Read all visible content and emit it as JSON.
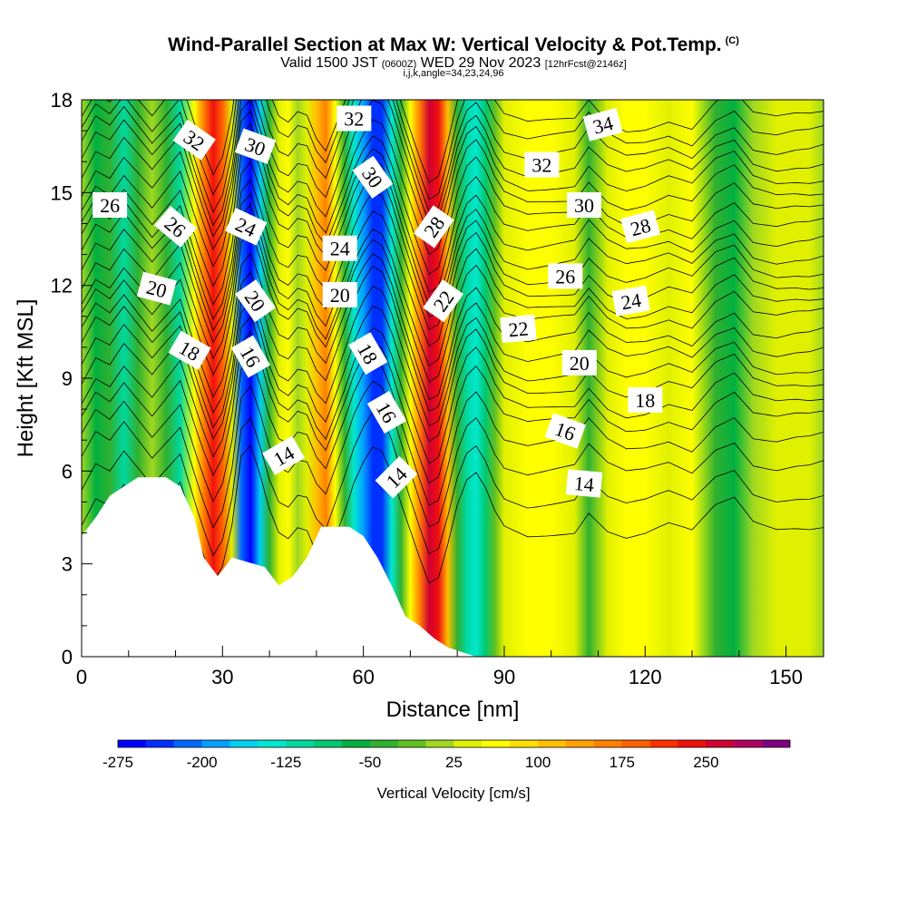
{
  "header": {
    "title": "Wind-Parallel Section at Max W: Vertical Velocity & Pot.Temp.",
    "copyright": "(C)",
    "valid_prefix": "Valid 1500 JST",
    "valid_utc": "(0600Z)",
    "valid_date": "WED 29 Nov 2023",
    "forecast": "[12hrFcst@2146z]",
    "indices": "i,j,k,angle=34,23,24,96"
  },
  "chart_data": {
    "type": "heatmap",
    "xlabel": "Distance [nm]",
    "ylabel": "Height [Kft MSL]",
    "xlim": [
      0,
      158
    ],
    "ylim": [
      0,
      18
    ],
    "x_ticks": [
      0,
      30,
      60,
      90,
      120,
      150
    ],
    "y_ticks": [
      0,
      3,
      6,
      9,
      12,
      15,
      18
    ],
    "colorbar": {
      "label": "Vertical Velocity [cm/s]",
      "min": -275,
      "max": 325,
      "step": 25,
      "tick_labels": [
        "-275",
        "-200",
        "-125",
        "-50",
        "25",
        "100",
        "175",
        "250"
      ],
      "tick_values": [
        -275,
        -200,
        -125,
        -50,
        25,
        100,
        175,
        250
      ],
      "colors": [
        "#0000ff",
        "#0030ff",
        "#0068ff",
        "#00a0ff",
        "#00d0f0",
        "#00e8d0",
        "#00d8a0",
        "#00c870",
        "#00b040",
        "#30b030",
        "#60c020",
        "#a0d820",
        "#e0f000",
        "#ffff00",
        "#ffe000",
        "#ffc000",
        "#ffa000",
        "#ff8000",
        "#ff6000",
        "#ff3000",
        "#f01010",
        "#d00030",
        "#b00060",
        "#800080"
      ]
    },
    "vertical_velocity_columns": [
      {
        "x": 0,
        "w": 20
      },
      {
        "x": 3,
        "w": -70
      },
      {
        "x": 6,
        "w": -40
      },
      {
        "x": 9,
        "w": -110
      },
      {
        "x": 12,
        "w": -50
      },
      {
        "x": 15,
        "w": 10
      },
      {
        "x": 18,
        "w": -50
      },
      {
        "x": 21,
        "w": -110
      },
      {
        "x": 24,
        "w": 50
      },
      {
        "x": 26,
        "w": 150
      },
      {
        "x": 28,
        "w": 240
      },
      {
        "x": 30,
        "w": 180
      },
      {
        "x": 32,
        "w": 30
      },
      {
        "x": 34,
        "w": -220
      },
      {
        "x": 36,
        "w": -260
      },
      {
        "x": 38,
        "w": -160
      },
      {
        "x": 40,
        "w": -40
      },
      {
        "x": 42,
        "w": 40
      },
      {
        "x": 44,
        "w": 60
      },
      {
        "x": 46,
        "w": 20
      },
      {
        "x": 48,
        "w": 30
      },
      {
        "x": 50,
        "w": 110
      },
      {
        "x": 52,
        "w": 150
      },
      {
        "x": 54,
        "w": 60
      },
      {
        "x": 56,
        "w": -30
      },
      {
        "x": 58,
        "w": -130
      },
      {
        "x": 60,
        "w": -200
      },
      {
        "x": 62,
        "w": -250
      },
      {
        "x": 64,
        "w": -230
      },
      {
        "x": 66,
        "w": -150
      },
      {
        "x": 68,
        "w": -40
      },
      {
        "x": 70,
        "w": 60
      },
      {
        "x": 72,
        "w": 160
      },
      {
        "x": 74,
        "w": 250
      },
      {
        "x": 76,
        "w": 230
      },
      {
        "x": 78,
        "w": 110
      },
      {
        "x": 80,
        "w": -30
      },
      {
        "x": 82,
        "w": -120
      },
      {
        "x": 84,
        "w": -150
      },
      {
        "x": 86,
        "w": -100
      },
      {
        "x": 88,
        "w": -20
      },
      {
        "x": 90,
        "w": 30
      },
      {
        "x": 95,
        "w": 60
      },
      {
        "x": 100,
        "w": 50
      },
      {
        "x": 105,
        "w": 40
      },
      {
        "x": 108,
        "w": -30
      },
      {
        "x": 112,
        "w": 40
      },
      {
        "x": 116,
        "w": 70
      },
      {
        "x": 120,
        "w": 60
      },
      {
        "x": 125,
        "w": 30
      },
      {
        "x": 130,
        "w": 60
      },
      {
        "x": 135,
        "w": -30
      },
      {
        "x": 139,
        "w": -60
      },
      {
        "x": 143,
        "w": 20
      },
      {
        "x": 148,
        "w": 40
      },
      {
        "x": 152,
        "w": 30
      },
      {
        "x": 155,
        "w": 30
      },
      {
        "x": 158,
        "w": 20
      }
    ],
    "terrain": [
      [
        0,
        3.9
      ],
      [
        3,
        4.5
      ],
      [
        6,
        5.2
      ],
      [
        9,
        5.5
      ],
      [
        12,
        5.8
      ],
      [
        18,
        5.8
      ],
      [
        21,
        5.5
      ],
      [
        24,
        4.5
      ],
      [
        26,
        3.2
      ],
      [
        29,
        2.6
      ],
      [
        32,
        3.2
      ],
      [
        39,
        2.9
      ],
      [
        42,
        2.3
      ],
      [
        45,
        2.6
      ],
      [
        48,
        3.2
      ],
      [
        51,
        4.2
      ],
      [
        57,
        4.2
      ],
      [
        60,
        3.9
      ],
      [
        63,
        3.2
      ],
      [
        66,
        2.3
      ],
      [
        69,
        1.3
      ],
      [
        72,
        1.0
      ],
      [
        75,
        0.6
      ],
      [
        78,
        0.3
      ],
      [
        84,
        0.0
      ],
      [
        158,
        0.0
      ]
    ],
    "theta_contour_base": [
      {
        "value": 12,
        "h": 4.5
      },
      {
        "value": 13,
        "h": 5.5
      },
      {
        "value": 14,
        "h": 6.5
      },
      {
        "value": 15,
        "h": 7.3
      },
      {
        "value": 16,
        "h": 8.0
      },
      {
        "value": 17,
        "h": 8.5
      },
      {
        "value": 18,
        "h": 9.1
      },
      {
        "value": 19,
        "h": 9.6
      },
      {
        "value": 20,
        "h": 10.2
      },
      {
        "value": 21,
        "h": 10.7
      },
      {
        "value": 22,
        "h": 11.3
      },
      {
        "value": 23,
        "h": 11.7
      },
      {
        "value": 24,
        "h": 12.2
      },
      {
        "value": 25,
        "h": 12.7
      },
      {
        "value": 26,
        "h": 13.2
      },
      {
        "value": 27,
        "h": 13.7
      },
      {
        "value": 28,
        "h": 14.2
      },
      {
        "value": 29,
        "h": 14.7
      },
      {
        "value": 30,
        "h": 15.2
      },
      {
        "value": 31,
        "h": 15.7
      },
      {
        "value": 32,
        "h": 16.2
      },
      {
        "value": 33,
        "h": 16.7
      },
      {
        "value": 34,
        "h": 17.2
      },
      {
        "value": 35,
        "h": 17.7
      }
    ],
    "contour_labels": [
      {
        "text": "32",
        "x": 24,
        "y": 16.7,
        "rot": 35
      },
      {
        "text": "30",
        "x": 37,
        "y": 16.5,
        "rot": 20
      },
      {
        "text": "32",
        "x": 58,
        "y": 17.4,
        "rot": 0
      },
      {
        "text": "34",
        "x": 111,
        "y": 17.2,
        "rot": -15
      },
      {
        "text": "32",
        "x": 98,
        "y": 15.9,
        "rot": 0
      },
      {
        "text": "30",
        "x": 62,
        "y": 15.5,
        "rot": 55
      },
      {
        "text": "26",
        "x": 6,
        "y": 14.6,
        "rot": 0
      },
      {
        "text": "30",
        "x": 107,
        "y": 14.6,
        "rot": 0
      },
      {
        "text": "26",
        "x": 20,
        "y": 13.9,
        "rot": 40
      },
      {
        "text": "24",
        "x": 35,
        "y": 13.9,
        "rot": 25
      },
      {
        "text": "28",
        "x": 75,
        "y": 13.9,
        "rot": -55
      },
      {
        "text": "28",
        "x": 119,
        "y": 13.9,
        "rot": -15
      },
      {
        "text": "24",
        "x": 55,
        "y": 13.2,
        "rot": 0
      },
      {
        "text": "26",
        "x": 103,
        "y": 12.3,
        "rot": 0
      },
      {
        "text": "20",
        "x": 16,
        "y": 11.9,
        "rot": 15
      },
      {
        "text": "20",
        "x": 55,
        "y": 11.7,
        "rot": 0
      },
      {
        "text": "20",
        "x": 37,
        "y": 11.5,
        "rot": 55
      },
      {
        "text": "22",
        "x": 77,
        "y": 11.5,
        "rot": -55
      },
      {
        "text": "24",
        "x": 117,
        "y": 11.5,
        "rot": -10
      },
      {
        "text": "22",
        "x": 93,
        "y": 10.6,
        "rot": -5
      },
      {
        "text": "18",
        "x": 23,
        "y": 9.9,
        "rot": 30
      },
      {
        "text": "16",
        "x": 36,
        "y": 9.7,
        "rot": 60
      },
      {
        "text": "18",
        "x": 61,
        "y": 9.8,
        "rot": 60
      },
      {
        "text": "20",
        "x": 106,
        "y": 9.5,
        "rot": 0
      },
      {
        "text": "18",
        "x": 120,
        "y": 8.3,
        "rot": 0
      },
      {
        "text": "16",
        "x": 65,
        "y": 7.9,
        "rot": 60
      },
      {
        "text": "16",
        "x": 103,
        "y": 7.3,
        "rot": 20
      },
      {
        "text": "14",
        "x": 43,
        "y": 6.5,
        "rot": -30
      },
      {
        "text": "14",
        "x": 67,
        "y": 5.8,
        "rot": -45
      },
      {
        "text": "14",
        "x": 107,
        "y": 5.6,
        "rot": 5
      }
    ]
  }
}
